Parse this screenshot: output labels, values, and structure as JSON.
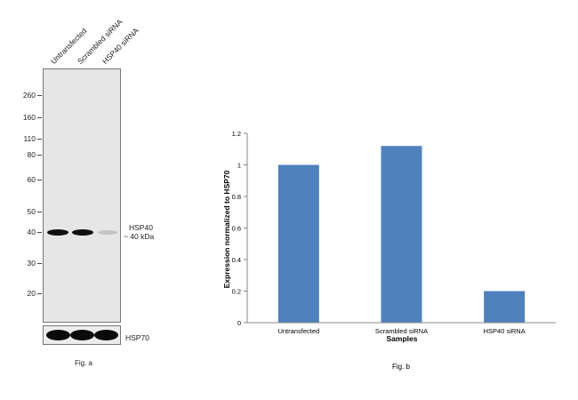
{
  "western_blot": {
    "lanes": [
      "Untransfected",
      "Scrambled siRNA",
      "HSP40 siRNA"
    ],
    "mw_markers": [
      "260",
      "160",
      "110",
      "80",
      "60",
      "50",
      "40",
      "30",
      "20"
    ],
    "target_label": "HSP40",
    "target_size": "~ 40 kDa",
    "loading_control": "HSP70",
    "caption": "Fig. a"
  },
  "chart_data": {
    "type": "bar",
    "categories": [
      "Untransfected",
      "Scrambled siRNA",
      "HSP40 siRNA"
    ],
    "values": [
      1.0,
      1.12,
      0.2
    ],
    "xlabel": "Samples",
    "ylabel": "Expression normalized to HSP70",
    "ylim": [
      0,
      1.2
    ],
    "yticks": [
      "0",
      "0.2",
      "0.4",
      "0.6",
      "0.8",
      "1",
      "1.2"
    ],
    "bar_color": "#4f81bd",
    "grid": false,
    "caption": "Fig. b"
  }
}
